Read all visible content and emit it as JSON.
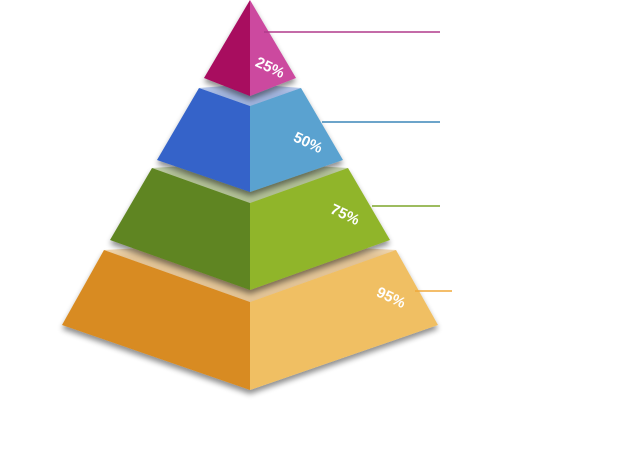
{
  "diagram": {
    "type": "3d-pyramid",
    "tiers": [
      {
        "label": "25%",
        "value": 25,
        "color_left": "#a8075f",
        "color_right": "#cc4a9f",
        "leader_color": "#b03a8c"
      },
      {
        "label": "50%",
        "value": 50,
        "color_left": "#3463c9",
        "color_right": "#5aa2d0",
        "leader_color": "#3b86b8"
      },
      {
        "label": "75%",
        "value": 75,
        "color_left": "#5e8520",
        "color_right": "#90b52b",
        "leader_color": "#7da62a"
      },
      {
        "label": "95%",
        "value": 95,
        "color_left": "#d88b22",
        "color_right": "#f0bf63",
        "leader_color": "#f0a83a"
      }
    ]
  }
}
